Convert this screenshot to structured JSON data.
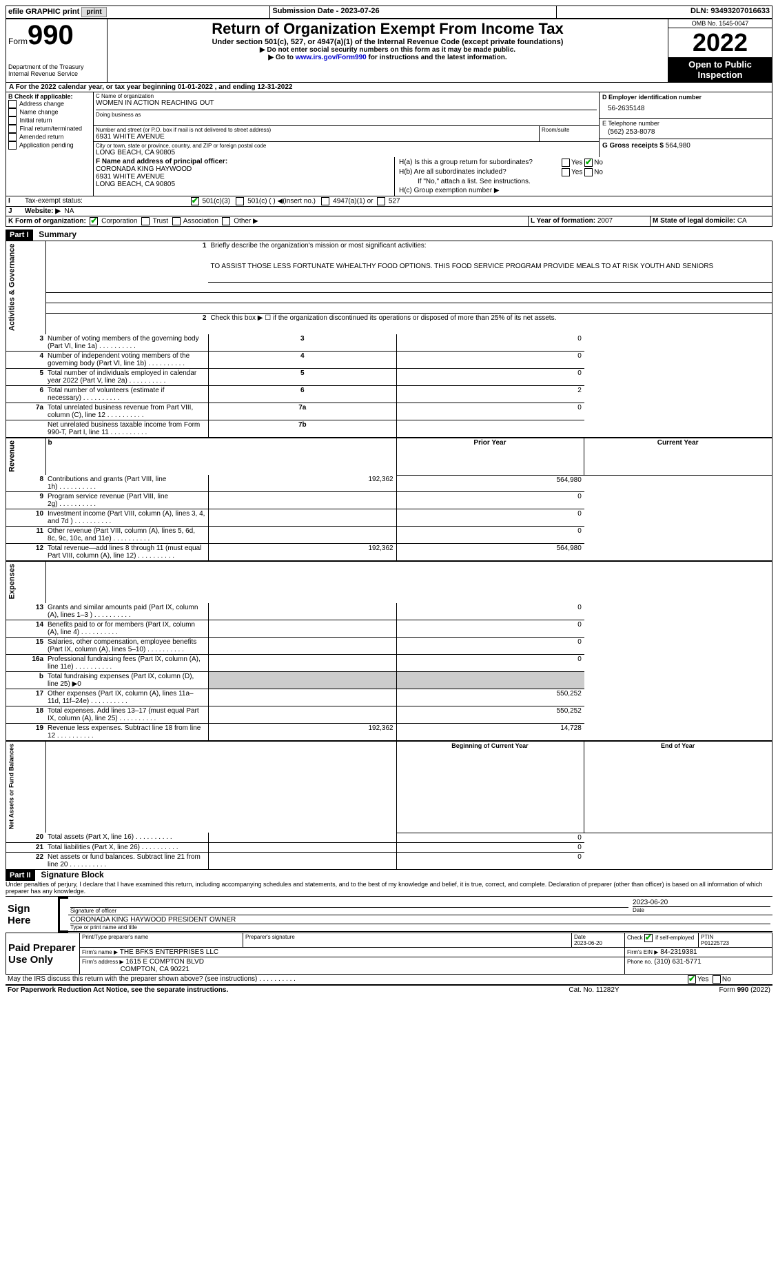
{
  "topbar": {
    "efile": "efile GRAPHIC print",
    "sub_label": "Submission Date - 2023-07-26",
    "dln_label": "DLN: 93493207016633"
  },
  "header": {
    "form_prefix": "Form",
    "form_number": "990",
    "title": "Return of Organization Exempt From Income Tax",
    "subtitle": "Under section 501(c), 527, or 4947(a)(1) of the Internal Revenue Code (except private foundations)",
    "instr1": "▶ Do not enter social security numbers on this form as it may be made public.",
    "instr2_pre": "▶ Go to ",
    "instr2_link": "www.irs.gov/Form990",
    "instr2_post": " for instructions and the latest information.",
    "dept": "Department of the Treasury",
    "irs": "Internal Revenue Service",
    "omb": "OMB No. 1545-0047",
    "year": "2022",
    "open": "Open to Public Inspection"
  },
  "sectionA": {
    "line": "A For the 2022 calendar year, or tax year beginning 01-01-2022   , and ending 12-31-2022",
    "B_label": "B Check if applicable:",
    "B_opts": [
      "Address change",
      "Name change",
      "Initial return",
      "Final return/terminated",
      "Amended return",
      "Application pending"
    ],
    "C_label": "C Name of organization",
    "C_name": "WOMEN IN ACTION REACHING OUT",
    "dba_label": "Doing business as",
    "addr_label": "Number and street (or P.O. box if mail is not delivered to street address)",
    "room_label": "Room/suite",
    "addr": "6931 WHITE AVENUE",
    "city_label": "City or town, state or province, country, and ZIP or foreign postal code",
    "city": "LONG BEACH, CA  90805",
    "D_label": "D Employer identification number",
    "D_val": "56-2635148",
    "E_label": "E Telephone number",
    "E_val": "(562) 253-8078",
    "G_label": "G Gross receipts $",
    "G_val": "564,980",
    "F_label": "F Name and address of principal officer:",
    "F_name": "CORONADA KING HAYWOOD",
    "F_addr1": "6931 WHITE AVENUE",
    "F_addr2": "LONG BEACH, CA  90805",
    "Ha_label": "H(a)  Is this a group return for subordinates?",
    "Hb_label": "H(b)  Are all subordinates included?",
    "Hb_note": "If \"No,\" attach a list. See instructions.",
    "Hc_label": "H(c)  Group exemption number ▶",
    "yes": "Yes",
    "no": "No",
    "I_label": "Tax-exempt status:",
    "I_501c3": "501(c)(3)",
    "I_501c": "501(c) (  ) ◀(insert no.)",
    "I_4947": "4947(a)(1) or",
    "I_527": "527",
    "J_label": "Website: ▶",
    "J_val": "NA",
    "K_label": "K Form of organization:",
    "K_opts": [
      "Corporation",
      "Trust",
      "Association",
      "Other ▶"
    ],
    "L_label": "L Year of formation:",
    "L_val": "2007",
    "M_label": "M State of legal domicile:",
    "M_val": "CA"
  },
  "part1": {
    "header": "Part I",
    "title": "Summary",
    "q1_label": "Briefly describe the organization's mission or most significant activities:",
    "q1_text": "TO ASSIST THOSE LESS FORTUNATE W/HEALTHY FOOD OPTIONS. THIS FOOD SERVICE PROGRAM PROVIDE MEALS TO AT RISK YOUTH AND SENIORS",
    "q2": "Check this box ▶ ☐ if the organization discontinued its operations or disposed of more than 25% of its net assets.",
    "vert_ag": "Activities & Governance",
    "vert_rev": "Revenue",
    "vert_exp": "Expenses",
    "vert_net": "Net Assets or Fund Balances",
    "rows_ag": [
      {
        "n": "3",
        "t": "Number of voting members of the governing body (Part VI, line 1a)",
        "box": "3",
        "v": "0"
      },
      {
        "n": "4",
        "t": "Number of independent voting members of the governing body (Part VI, line 1b)",
        "box": "4",
        "v": "0"
      },
      {
        "n": "5",
        "t": "Total number of individuals employed in calendar year 2022 (Part V, line 2a)",
        "box": "5",
        "v": "0"
      },
      {
        "n": "6",
        "t": "Total number of volunteers (estimate if necessary)",
        "box": "6",
        "v": "2"
      },
      {
        "n": "7a",
        "t": "Total unrelated business revenue from Part VIII, column (C), line 12",
        "box": "7a",
        "v": "0"
      },
      {
        "n": "",
        "t": "Net unrelated business taxable income from Form 990-T, Part I, line 11",
        "box": "7b",
        "v": ""
      }
    ],
    "col_prior": "Prior Year",
    "col_current": "Current Year",
    "rows_rev": [
      {
        "n": "8",
        "t": "Contributions and grants (Part VIII, line 1h)",
        "p": "192,362",
        "c": "564,980"
      },
      {
        "n": "9",
        "t": "Program service revenue (Part VIII, line 2g)",
        "p": "",
        "c": "0"
      },
      {
        "n": "10",
        "t": "Investment income (Part VIII, column (A), lines 3, 4, and 7d )",
        "p": "",
        "c": "0"
      },
      {
        "n": "11",
        "t": "Other revenue (Part VIII, column (A), lines 5, 6d, 8c, 9c, 10c, and 11e)",
        "p": "",
        "c": "0"
      },
      {
        "n": "12",
        "t": "Total revenue—add lines 8 through 11 (must equal Part VIII, column (A), line 12)",
        "p": "192,362",
        "c": "564,980"
      }
    ],
    "rows_exp": [
      {
        "n": "13",
        "t": "Grants and similar amounts paid (Part IX, column (A), lines 1–3 )",
        "p": "",
        "c": "0"
      },
      {
        "n": "14",
        "t": "Benefits paid to or for members (Part IX, column (A), line 4)",
        "p": "",
        "c": "0"
      },
      {
        "n": "15",
        "t": "Salaries, other compensation, employee benefits (Part IX, column (A), lines 5–10)",
        "p": "",
        "c": "0"
      },
      {
        "n": "16a",
        "t": "Professional fundraising fees (Part IX, column (A), line 11e)",
        "p": "",
        "c": "0"
      },
      {
        "n": "b",
        "t": "Total fundraising expenses (Part IX, column (D), line 25) ▶0",
        "p": "shaded",
        "c": "shaded"
      },
      {
        "n": "17",
        "t": "Other expenses (Part IX, column (A), lines 11a–11d, 11f–24e)",
        "p": "",
        "c": "550,252"
      },
      {
        "n": "18",
        "t": "Total expenses. Add lines 13–17 (must equal Part IX, column (A), line 25)",
        "p": "",
        "c": "550,252"
      },
      {
        "n": "19",
        "t": "Revenue less expenses. Subtract line 18 from line 12",
        "p": "192,362",
        "c": "14,728"
      }
    ],
    "col_begin": "Beginning of Current Year",
    "col_end": "End of Year",
    "rows_net": [
      {
        "n": "20",
        "t": "Total assets (Part X, line 16)",
        "p": "",
        "c": "0"
      },
      {
        "n": "21",
        "t": "Total liabilities (Part X, line 26)",
        "p": "",
        "c": "0"
      },
      {
        "n": "22",
        "t": "Net assets or fund balances. Subtract line 21 from line 20",
        "p": "",
        "c": "0"
      }
    ]
  },
  "part2": {
    "header": "Part II",
    "title": "Signature Block",
    "decl": "Under penalties of perjury, I declare that I have examined this return, including accompanying schedules and statements, and to the best of my knowledge and belief, it is true, correct, and complete. Declaration of preparer (other than officer) is based on all information of which preparer has any knowledge.",
    "sign_here": "Sign Here",
    "sig_officer": "Signature of officer",
    "sig_date": "2023-06-20",
    "date_label": "Date",
    "officer_name": "CORONADA KING HAYWOOD  PRESIDENT OWNER",
    "type_label": "Type or print name and title",
    "paid": "Paid Preparer Use Only",
    "prep_name_label": "Print/Type preparer's name",
    "prep_sig_label": "Preparer's signature",
    "prep_date_label": "Date",
    "prep_date": "2023-06-20",
    "check_label": "Check ☑ if self-employed",
    "ptin_label": "PTIN",
    "ptin": "P01225723",
    "firm_name_label": "Firm's name    ▶",
    "firm_name": "THE BFKS ENTERPRISES LLC",
    "firm_ein_label": "Firm's EIN ▶",
    "firm_ein": "84-2319381",
    "firm_addr_label": "Firm's address ▶",
    "firm_addr1": "1615 E COMPTON BLVD",
    "firm_addr2": "COMPTON, CA  90221",
    "phone_label": "Phone no.",
    "phone": "(310) 631-5771",
    "discuss": "May the IRS discuss this return with the preparer shown above? (see instructions)"
  },
  "footer": {
    "pra": "For Paperwork Reduction Act Notice, see the separate instructions.",
    "cat": "Cat. No. 11282Y",
    "form": "Form 990 (2022)"
  }
}
